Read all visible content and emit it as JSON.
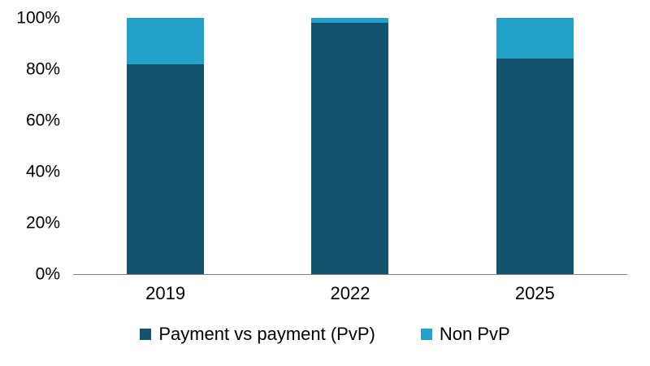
{
  "chart_data": {
    "type": "bar",
    "stacked": true,
    "percent_stacked": true,
    "title": "",
    "xlabel": "",
    "ylabel": "",
    "categories": [
      "2019",
      "2022",
      "2025"
    ],
    "series": [
      {
        "name": "Payment vs payment (PvP)",
        "color": "#14536e",
        "values": [
          82,
          98,
          84
        ]
      },
      {
        "name": "Non PvP",
        "color": "#22a2c9",
        "values": [
          18,
          2,
          16
        ]
      }
    ],
    "yticks": [
      0,
      20,
      40,
      60,
      80,
      100
    ],
    "ytick_suffix": "%",
    "ylim": [
      0,
      100
    ],
    "grid": false,
    "legend_position": "bottom"
  },
  "colors": {
    "background": "#ffffff",
    "axis_line": "#808080",
    "text": "#000000"
  }
}
